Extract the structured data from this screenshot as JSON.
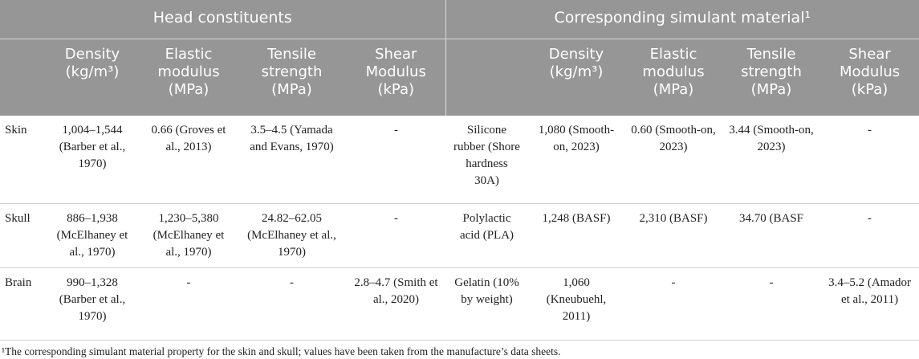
{
  "header": {
    "groups": [
      "Head constituents",
      "Corresponding simulant material¹"
    ],
    "head_columns": [
      "Density (kg/m³)",
      "Elastic modulus (MPa)",
      "Tensile strength (MPa)",
      "Shear Modulus (kPa)"
    ],
    "simulant_columns": [
      "Density (kg/m³)",
      "Elastic modulus (MPa)",
      "Tensile strength (MPa)",
      "Shear Modulus (kPa)"
    ]
  },
  "table": {
    "rows": [
      {
        "label": "Skin",
        "head": [
          "1,004–1,544 (Barber et al., 1970)",
          "0.66 (Groves et al., 2013)",
          "3.5–4.5 (Yamada and Evans, 1970)",
          "-"
        ],
        "simulant": "Silicone rubber (Shore hardness 30A)",
        "simulant_values": [
          "1,080 (Smooth-on, 2023)",
          "0.60 (Smooth-on, 2023)",
          "3.44 (Smooth-on, 2023)",
          "-"
        ]
      },
      {
        "label": "Skull",
        "head": [
          "886–1,938 (McElhaney et al., 1970)",
          "1,230–5,380 (McElhaney et al., 1970)",
          "24.82–62.05 (McElhaney et al., 1970)",
          "-"
        ],
        "simulant": "Polylactic acid (PLA)",
        "simulant_values": [
          "1,248 (BASF)",
          "2,310 (BASF)",
          "34.70 (BASF",
          "-"
        ]
      },
      {
        "label": "Brain",
        "head": [
          "990–1,328 (Barber et al., 1970)",
          "-",
          "-",
          "2.8–4.7 (Smith et al., 2020)"
        ],
        "simulant": "Gelatin (10% by weight)",
        "simulant_values": [
          "1,060 (Kneubuehl, 2011)",
          "-",
          "-",
          "3.4–5.2 (Amador et al., 2011)"
        ]
      }
    ]
  },
  "footnote": "¹The corresponding simulant material property for the skin and skull; values have been taken from the manufacture’s data sheets."
}
